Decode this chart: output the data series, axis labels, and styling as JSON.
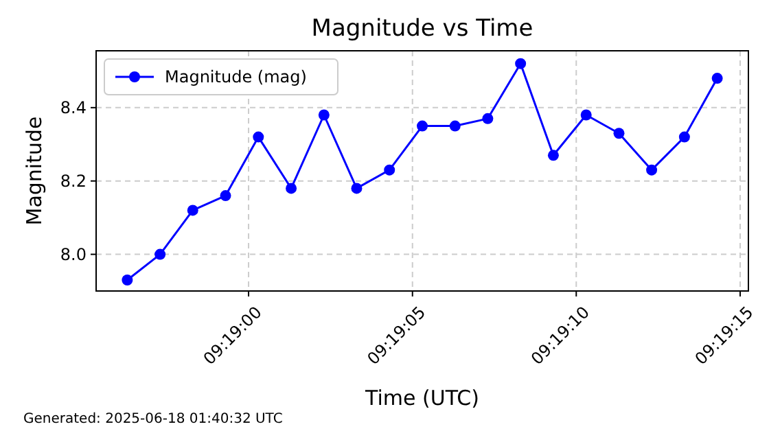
{
  "chart_data": {
    "type": "line",
    "title": "Magnitude vs Time",
    "xlabel": "Time (UTC)",
    "ylabel": "Magnitude",
    "x": [
      9.315639,
      9.315917,
      9.316194,
      9.316472,
      9.31675,
      9.317028,
      9.317306,
      9.317583,
      9.317861,
      9.318139,
      9.318417,
      9.318694,
      9.318972,
      9.31925,
      9.319528,
      9.319806,
      9.320083,
      9.320361,
      9.320639
    ],
    "series": [
      {
        "name": "Magnitude (mag)",
        "color": "#0000ff",
        "values": [
          7.93,
          8.0,
          8.12,
          8.16,
          8.32,
          8.18,
          8.38,
          8.18,
          8.23,
          8.35,
          8.35,
          8.37,
          8.52,
          8.27,
          8.38,
          8.33,
          8.23,
          8.32,
          8.48
        ]
      }
    ],
    "xlim": [
      9.315375,
      9.320903
    ],
    "xticks": [
      {
        "value": 9.316667,
        "label": "09:19:00"
      },
      {
        "value": 9.318056,
        "label": "09:19:05"
      },
      {
        "value": 9.319444,
        "label": "09:19:10"
      },
      {
        "value": 9.320833,
        "label": "09:19:15"
      }
    ],
    "ylim": [
      7.9,
      8.555
    ],
    "yticks": [
      {
        "value": 8.0,
        "label": "8.0"
      },
      {
        "value": 8.2,
        "label": "8.2"
      },
      {
        "value": 8.4,
        "label": "8.4"
      }
    ],
    "grid": true,
    "legend": "top left",
    "marker": "circle",
    "line_style": "solid",
    "annotations": [
      "Generated: 2025-06-18 01:40:32 UTC"
    ]
  }
}
